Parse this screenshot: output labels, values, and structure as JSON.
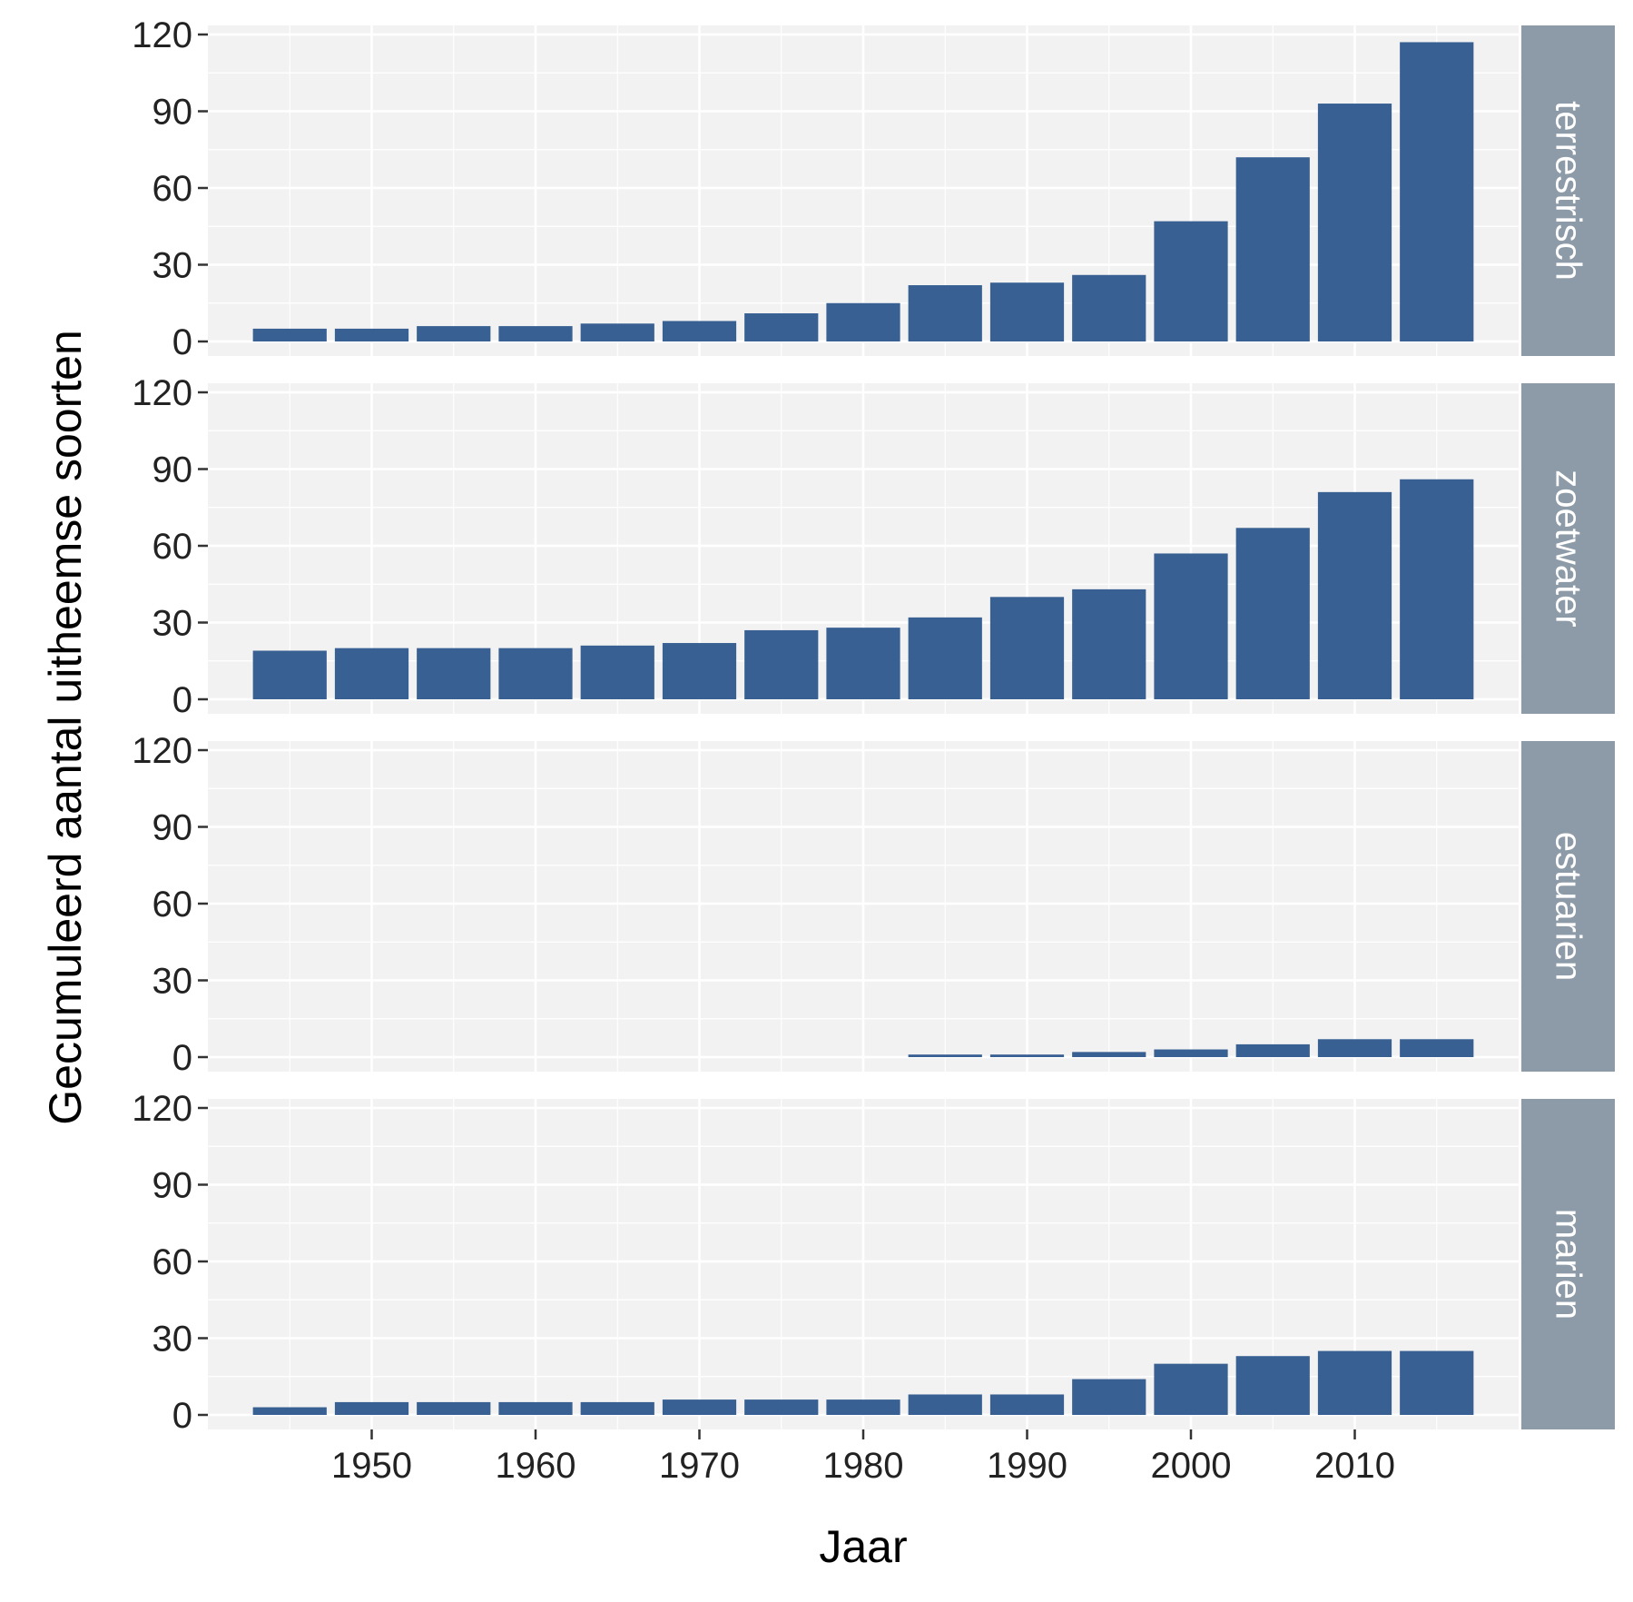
{
  "chart_data": {
    "type": "bar",
    "layout": "faceted-vertical",
    "xlabel": "Jaar",
    "ylabel": "Gecumuleerd aantal uitheemse soorten",
    "ylim": [
      0,
      120
    ],
    "y_ticks": [
      0,
      30,
      60,
      90,
      120
    ],
    "x_ticks": [
      1950,
      1960,
      1970,
      1980,
      1990,
      2000,
      2010
    ],
    "x_range": [
      1940,
      2020
    ],
    "grid": true,
    "bar_color": "#386093",
    "panel_background": "#f2f2f2",
    "strip_color": "#8d9ba8",
    "categories": [
      1945,
      1950,
      1955,
      1960,
      1965,
      1970,
      1975,
      1980,
      1985,
      1990,
      1995,
      2000,
      2005,
      2010,
      2015
    ],
    "series": [
      {
        "name": "terrestrisch",
        "values": [
          5,
          5,
          6,
          6,
          7,
          8,
          11,
          15,
          22,
          23,
          26,
          47,
          72,
          93,
          117
        ]
      },
      {
        "name": "zoetwater",
        "values": [
          19,
          20,
          20,
          20,
          21,
          22,
          27,
          28,
          32,
          40,
          43,
          57,
          67,
          81,
          86
        ]
      },
      {
        "name": "estuarien",
        "values": [
          0,
          0,
          0,
          0,
          0,
          0,
          0,
          0,
          1,
          1,
          2,
          3,
          5,
          7,
          7
        ]
      },
      {
        "name": "marien",
        "values": [
          3,
          5,
          5,
          5,
          5,
          6,
          6,
          6,
          8,
          8,
          14,
          20,
          23,
          25,
          25
        ]
      }
    ]
  }
}
